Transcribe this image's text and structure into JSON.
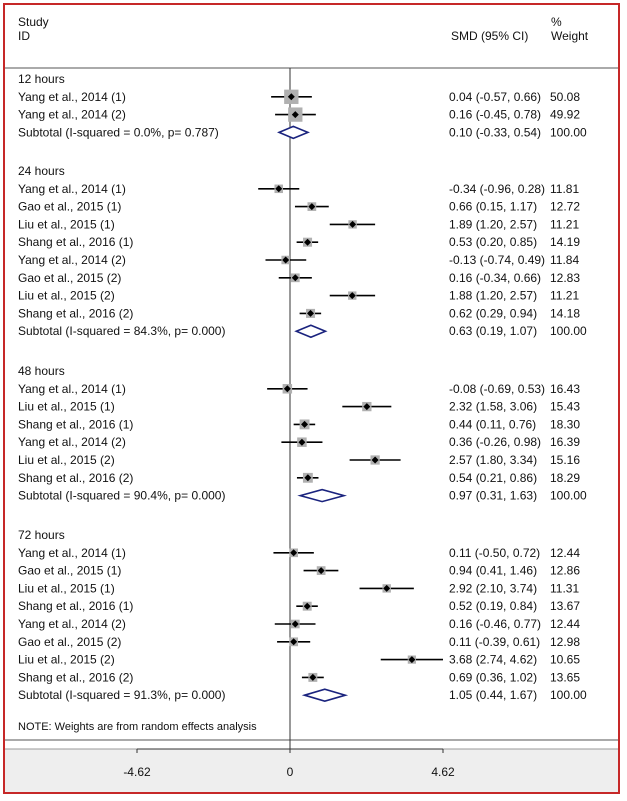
{
  "header": {
    "study_label": "Study",
    "id_label": "ID",
    "effect_label": "SMD (95% CI)",
    "pct_label": "%",
    "weight_label": "Weight"
  },
  "note": "NOTE: Weights are from random effects analysis",
  "colors": {
    "border": "#c62828",
    "diamond": "#1a237e",
    "box": "#b0b0b0",
    "line": "#000000",
    "axis_band": "#eeeeee"
  },
  "chart_data": {
    "type": "forest",
    "xlim": [
      -4.62,
      4.62
    ],
    "x_ticks": [
      "-4.62",
      "0",
      "4.62"
    ],
    "groups": [
      {
        "label": "12 hours",
        "studies": [
          {
            "name": "Yang et al., 2014 (1)",
            "est": 0.04,
            "lo": -0.57,
            "hi": 0.66,
            "weight": 50.08,
            "ci_text": "0.04 (-0.57, 0.66)",
            "weight_text": "50.08"
          },
          {
            "name": "Yang et al.,  2014 (2)",
            "est": 0.16,
            "lo": -0.45,
            "hi": 0.78,
            "weight": 49.92,
            "ci_text": "0.16 (-0.45, 0.78)",
            "weight_text": "49.92"
          }
        ],
        "subtotal": {
          "label": "Subtotal (I-squared = 0.0%, p= 0.787)",
          "est": 0.1,
          "lo": -0.33,
          "hi": 0.54,
          "ci_text": "0.10 (-0.33, 0.54)",
          "weight_text": "100.00"
        }
      },
      {
        "label": "24 hours",
        "studies": [
          {
            "name": "Yang et al., 2014 (1)",
            "est": -0.34,
            "lo": -0.96,
            "hi": 0.28,
            "weight": 11.81,
            "ci_text": "-0.34 (-0.96, 0.28)",
            "weight_text": "11.81"
          },
          {
            "name": "Gao et al., 2015 (1)",
            "est": 0.66,
            "lo": 0.15,
            "hi": 1.17,
            "weight": 12.72,
            "ci_text": "0.66 (0.15, 1.17)",
            "weight_text": "12.72"
          },
          {
            "name": "Liu et al., 2015 (1)",
            "est": 1.89,
            "lo": 1.2,
            "hi": 2.57,
            "weight": 11.21,
            "ci_text": "1.89 (1.20, 2.57)",
            "weight_text": "11.21"
          },
          {
            "name": "Shang et al., 2016 (1)",
            "est": 0.53,
            "lo": 0.2,
            "hi": 0.85,
            "weight": 14.19,
            "ci_text": "0.53 (0.20, 0.85)",
            "weight_text": "14.19"
          },
          {
            "name": "Yang et al.,  2014 (2)",
            "est": -0.13,
            "lo": -0.74,
            "hi": 0.49,
            "weight": 11.84,
            "ci_text": "-0.13 (-0.74, 0.49)",
            "weight_text": "11.84"
          },
          {
            "name": "Gao et al., 2015 (2)",
            "est": 0.16,
            "lo": -0.34,
            "hi": 0.66,
            "weight": 12.83,
            "ci_text": "0.16 (-0.34, 0.66)",
            "weight_text": "12.83"
          },
          {
            "name": "Liu et al., 2015 (2)",
            "est": 1.88,
            "lo": 1.2,
            "hi": 2.57,
            "weight": 11.21,
            "ci_text": "1.88 (1.20, 2.57)",
            "weight_text": "11.21"
          },
          {
            "name": "Shang et al., 2016 (2)",
            "est": 0.62,
            "lo": 0.29,
            "hi": 0.94,
            "weight": 14.18,
            "ci_text": "0.62 (0.29, 0.94)",
            "weight_text": "14.18"
          }
        ],
        "subtotal": {
          "label": "Subtotal (I-squared = 84.3%, p= 0.000)",
          "est": 0.63,
          "lo": 0.19,
          "hi": 1.07,
          "ci_text": "0.63 (0.19, 1.07)",
          "weight_text": "100.00"
        }
      },
      {
        "label": "48 hours",
        "studies": [
          {
            "name": "Yang et al., 2014 (1)",
            "est": -0.08,
            "lo": -0.69,
            "hi": 0.53,
            "weight": 16.43,
            "ci_text": "-0.08 (-0.69, 0.53)",
            "weight_text": "16.43"
          },
          {
            "name": "Liu et al., 2015 (1)",
            "est": 2.32,
            "lo": 1.58,
            "hi": 3.06,
            "weight": 15.43,
            "ci_text": "2.32 (1.58, 3.06)",
            "weight_text": "15.43"
          },
          {
            "name": "Shang et al., 2016 (1)",
            "est": 0.44,
            "lo": 0.11,
            "hi": 0.76,
            "weight": 18.3,
            "ci_text": "0.44 (0.11, 0.76)",
            "weight_text": "18.30"
          },
          {
            "name": "Yang et al.,  2014 (2)",
            "est": 0.36,
            "lo": -0.26,
            "hi": 0.98,
            "weight": 16.39,
            "ci_text": "0.36 (-0.26, 0.98)",
            "weight_text": "16.39"
          },
          {
            "name": "Liu et al., 2015 (2)",
            "est": 2.57,
            "lo": 1.8,
            "hi": 3.34,
            "weight": 15.16,
            "ci_text": "2.57 (1.80, 3.34)",
            "weight_text": "15.16"
          },
          {
            "name": "Shang et al., 2016 (2)",
            "est": 0.54,
            "lo": 0.21,
            "hi": 0.86,
            "weight": 18.29,
            "ci_text": "0.54 (0.21, 0.86)",
            "weight_text": "18.29"
          }
        ],
        "subtotal": {
          "label": "Subtotal (I-squared = 90.4%, p= 0.000)",
          "est": 0.97,
          "lo": 0.31,
          "hi": 1.63,
          "ci_text": "0.97 (0.31, 1.63)",
          "weight_text": "100.00"
        }
      },
      {
        "label": "72 hours",
        "studies": [
          {
            "name": "Yang et al., 2014 (1)",
            "est": 0.11,
            "lo": -0.5,
            "hi": 0.72,
            "weight": 12.44,
            "ci_text": "0.11 (-0.50, 0.72)",
            "weight_text": "12.44"
          },
          {
            "name": "Gao et al., 2015 (1)",
            "est": 0.94,
            "lo": 0.41,
            "hi": 1.46,
            "weight": 12.86,
            "ci_text": "0.94 (0.41, 1.46)",
            "weight_text": "12.86"
          },
          {
            "name": "Liu et al., 2015 (1)",
            "est": 2.92,
            "lo": 2.1,
            "hi": 3.74,
            "weight": 11.31,
            "ci_text": "2.92 (2.10, 3.74)",
            "weight_text": "11.31"
          },
          {
            "name": "Shang et al., 2016 (1)",
            "est": 0.52,
            "lo": 0.19,
            "hi": 0.84,
            "weight": 13.67,
            "ci_text": "0.52 (0.19, 0.84)",
            "weight_text": "13.67"
          },
          {
            "name": "Yang et al.,  2014 (2)",
            "est": 0.16,
            "lo": -0.46,
            "hi": 0.77,
            "weight": 12.44,
            "ci_text": "0.16 (-0.46, 0.77)",
            "weight_text": "12.44"
          },
          {
            "name": "Gao et al., 2015 (2)",
            "est": 0.11,
            "lo": -0.39,
            "hi": 0.61,
            "weight": 12.98,
            "ci_text": "0.11 (-0.39, 0.61)",
            "weight_text": "12.98"
          },
          {
            "name": "Liu et al., 2015 (2)",
            "est": 3.68,
            "lo": 2.74,
            "hi": 4.62,
            "weight": 10.65,
            "ci_text": "3.68 (2.74, 4.62)",
            "weight_text": "10.65"
          },
          {
            "name": "Shang et al., 2016 (2)",
            "est": 0.69,
            "lo": 0.36,
            "hi": 1.02,
            "weight": 13.65,
            "ci_text": "0.69 (0.36, 1.02)",
            "weight_text": "13.65"
          }
        ],
        "subtotal": {
          "label": "Subtotal (I-squared = 91.3%, p= 0.000)",
          "est": 1.05,
          "lo": 0.44,
          "hi": 1.67,
          "ci_text": "1.05 (0.44, 1.67)",
          "weight_text": "100.00"
        }
      }
    ]
  }
}
